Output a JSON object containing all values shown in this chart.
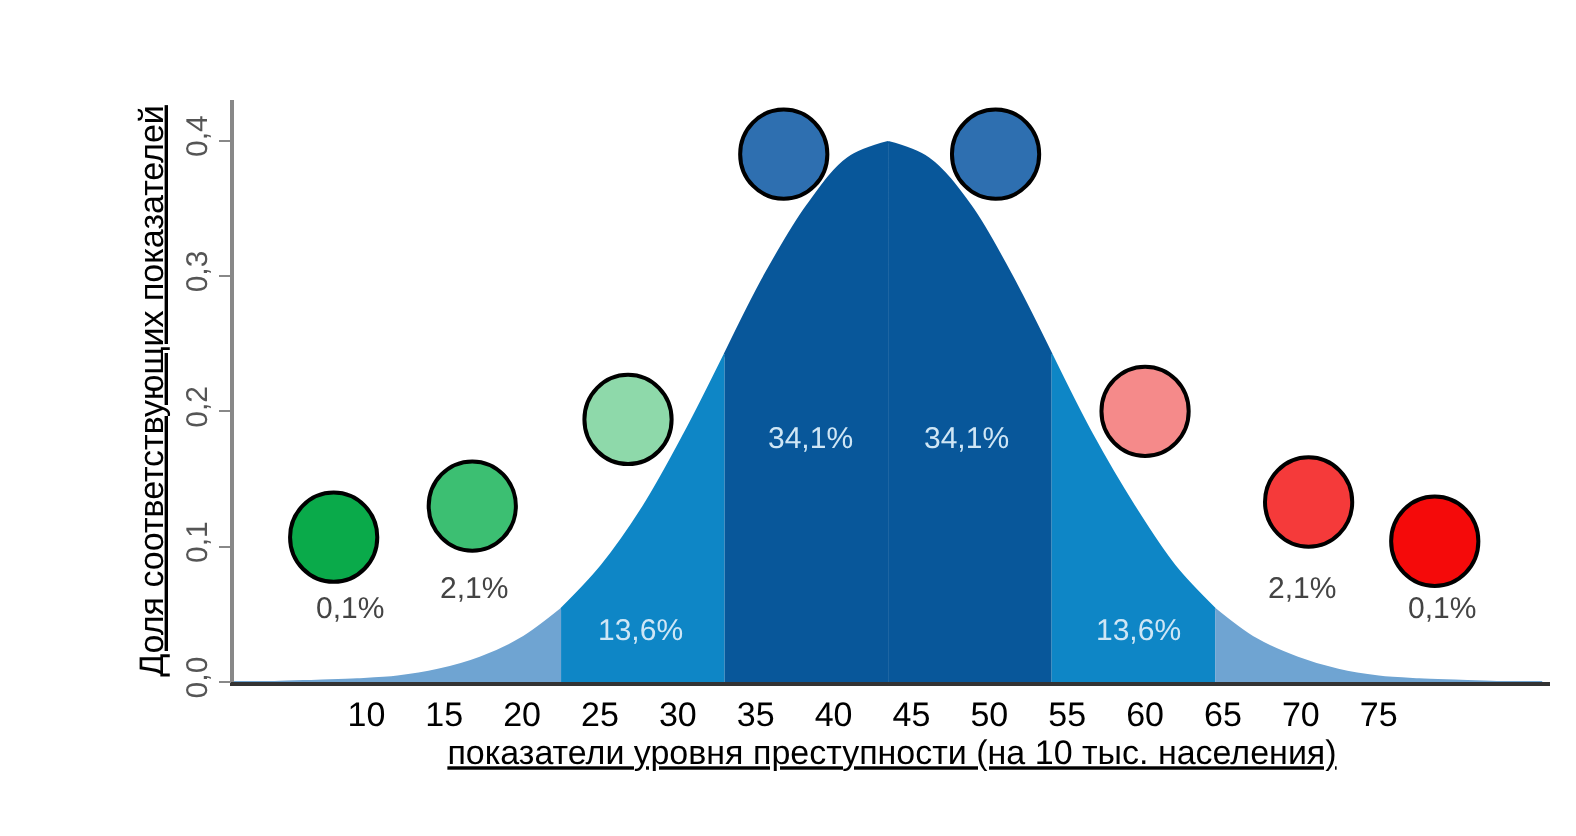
{
  "chart_data": {
    "type": "area",
    "xlabel": "показатели уровня преступности (на 10 тыс. населения)",
    "ylabel": "Доля соответствующих показателей",
    "xlim": [
      1.5,
      86
    ],
    "xticks": [
      10,
      15,
      20,
      25,
      30,
      35,
      40,
      45,
      50,
      55,
      60,
      65,
      70,
      75
    ],
    "ylim": [
      0,
      0.43
    ],
    "yticks": [
      {
        "value": 0,
        "label": "0,0"
      },
      {
        "value": 0.1,
        "label": "0,1"
      },
      {
        "value": 0.2,
        "label": "0,2"
      },
      {
        "value": 0.3,
        "label": "0,3"
      },
      {
        "value": 0.4,
        "label": "0,4"
      }
    ],
    "series": [
      {
        "color": "#6fa4d2",
        "x": [
          1.5,
          4.1,
          6.8,
          9.4,
          12,
          14.6,
          17.3,
          19.9,
          22.5
        ],
        "values": [
          0.0,
          0.0,
          0.001,
          0.002,
          0.004,
          0.009,
          0.018,
          0.032,
          0.054
        ]
      },
      {
        "color": "#0e86c6",
        "x": [
          22.5,
          25.1,
          27.8,
          30.4,
          33
        ],
        "values": [
          0.054,
          0.086,
          0.13,
          0.183,
          0.242
        ]
      },
      {
        "color": "#08579a",
        "x": [
          33,
          35.6,
          38.3,
          40.9,
          43.5
        ],
        "values": [
          0.242,
          0.301,
          0.352,
          0.387,
          0.399
        ]
      },
      {
        "color": "#08579a",
        "x": [
          43.5,
          46.1,
          48.8,
          51.4,
          54
        ],
        "values": [
          0.399,
          0.387,
          0.352,
          0.301,
          0.242
        ]
      },
      {
        "color": "#0e86c6",
        "x": [
          54,
          56.6,
          59.3,
          61.9,
          64.5
        ],
        "values": [
          0.242,
          0.183,
          0.13,
          0.086,
          0.054
        ]
      },
      {
        "color": "#6fa4d2",
        "x": [
          64.5,
          67.1,
          69.8,
          72.4,
          75,
          77.6,
          80.3,
          82.9,
          85.5
        ],
        "values": [
          0.054,
          0.032,
          0.018,
          0.009,
          0.004,
          0.002,
          0.001,
          0.0,
          0.0
        ]
      }
    ],
    "annotations": [
      "0,1%",
      "2,1%",
      "13,6%",
      "34,1%",
      "34,1%",
      "13,6%",
      "2,1%",
      "0,1%"
    ]
  }
}
